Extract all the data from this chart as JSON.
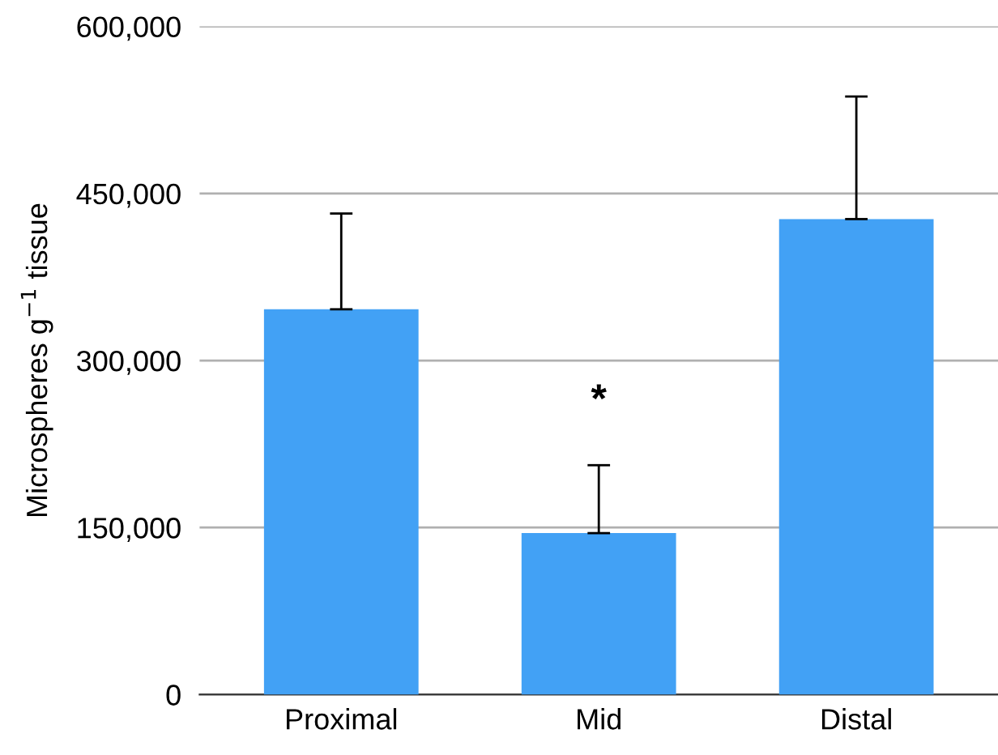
{
  "chart_data": {
    "type": "bar",
    "ylabel": "Microspheres g$^{−1}$ tissue",
    "categories": [
      "Proximal",
      "Mid",
      "Distal"
    ],
    "values": [
      346000,
      145000,
      427000
    ],
    "errors": [
      [
        346000,
        432000
      ],
      [
        145000,
        206000
      ],
      [
        427000,
        537000
      ]
    ],
    "color": "#42a1f5",
    "ylim": [
      0,
      600000
    ],
    "yticks": [
      {
        "value": 0,
        "label": "0"
      },
      {
        "value": 150000,
        "label": "150,000"
      },
      {
        "value": 300000,
        "label": "300,000"
      },
      {
        "value": 450000,
        "label": "450,000"
      },
      {
        "value": 600000,
        "label": "600,000"
      }
    ],
    "grid": "y",
    "annotations": [
      "*"
    ]
  }
}
